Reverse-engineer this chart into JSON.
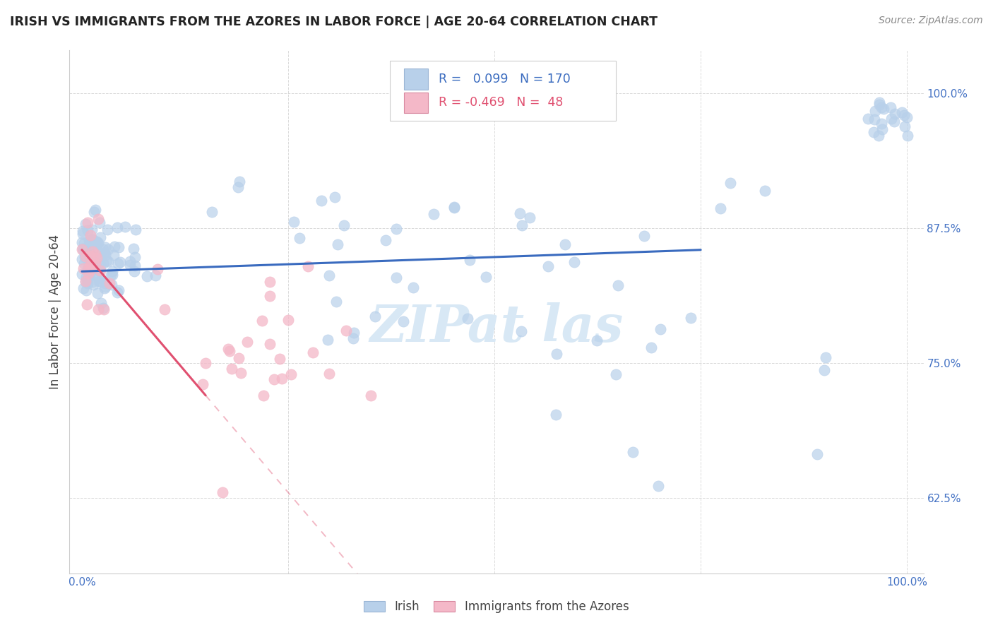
{
  "title": "IRISH VS IMMIGRANTS FROM THE AZORES IN LABOR FORCE | AGE 20-64 CORRELATION CHART",
  "source": "Source: ZipAtlas.com",
  "ylabel": "In Labor Force | Age 20-64",
  "irish_R": 0.099,
  "irish_N": 170,
  "azores_R": -0.469,
  "azores_N": 48,
  "irish_color": "#b8d0ea",
  "azores_color": "#f4b8c8",
  "irish_line_color": "#3a6bbf",
  "azores_line_color": "#e05070",
  "background_color": "#ffffff",
  "title_color": "#222222",
  "source_color": "#888888",
  "tick_color": "#4472c4",
  "ylabel_color": "#444444",
  "grid_color": "#d0d0d0",
  "watermark_color": "#d8e8f5",
  "xlim": [
    -0.015,
    1.02
  ],
  "ylim": [
    0.555,
    1.04
  ],
  "y_ticks": [
    0.625,
    0.75,
    0.875,
    1.0
  ],
  "y_tick_labels": [
    "62.5%",
    "75.0%",
    "87.5%",
    "100.0%"
  ],
  "x_ticks": [
    0.0,
    0.25,
    0.5,
    0.75,
    1.0
  ],
  "x_tick_labels": [
    "0.0%",
    "",
    "",
    "",
    "100.0%"
  ]
}
